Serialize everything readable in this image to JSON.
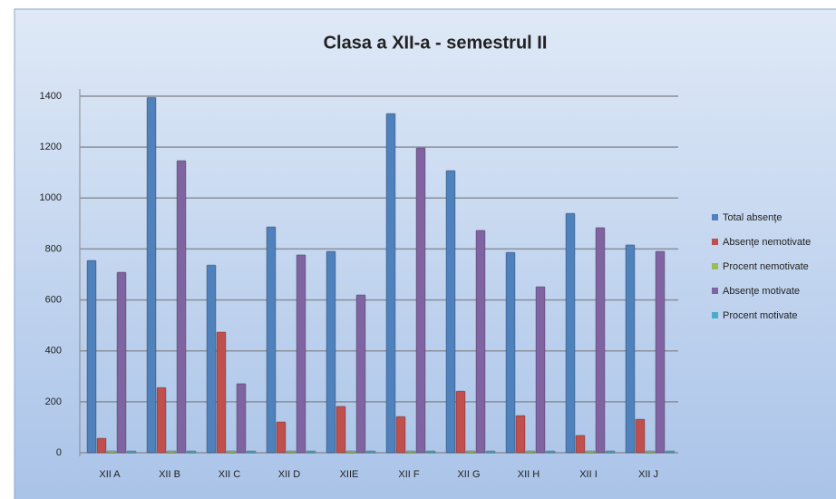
{
  "chart_data": {
    "type": "bar",
    "title": "Clasa a XII-a - semestrul II",
    "categories": [
      "XII A",
      "XII B",
      "XII C",
      "XII D",
      "XIIE",
      "XII F",
      "XII G",
      "XII H",
      "XII I",
      "XII J"
    ],
    "series": [
      {
        "name": "Total absenţe",
        "color": "#4f81bd",
        "values": [
          755,
          1395,
          737,
          887,
          791,
          1332,
          1108,
          787,
          940,
          816
        ]
      },
      {
        "name": "Absenţe nemotivate",
        "color": "#c0504d",
        "values": [
          57,
          256,
          474,
          121,
          182,
          142,
          242,
          146,
          68,
          132
        ]
      },
      {
        "name": "Procent nemotivate",
        "color": "#9bbb59",
        "values": [
          0.08,
          0.18,
          0.64,
          0.14,
          0.23,
          0.11,
          0.22,
          0.19,
          0.07,
          0.16
        ]
      },
      {
        "name": "Absenţe motivate",
        "color": "#8064a2",
        "values": [
          709,
          1147,
          271,
          777,
          620,
          1197,
          873,
          652,
          884,
          791
        ]
      },
      {
        "name": "Procent motivate",
        "color": "#4bacc6",
        "values": [
          0.92,
          0.82,
          0.36,
          0.86,
          0.77,
          0.89,
          0.78,
          0.81,
          0.93,
          0.84
        ]
      }
    ],
    "ylim": [
      0,
      1400
    ],
    "yticks": [
      0,
      200,
      400,
      600,
      800,
      1000,
      1200,
      1400
    ],
    "grid": true,
    "legend": "right"
  }
}
